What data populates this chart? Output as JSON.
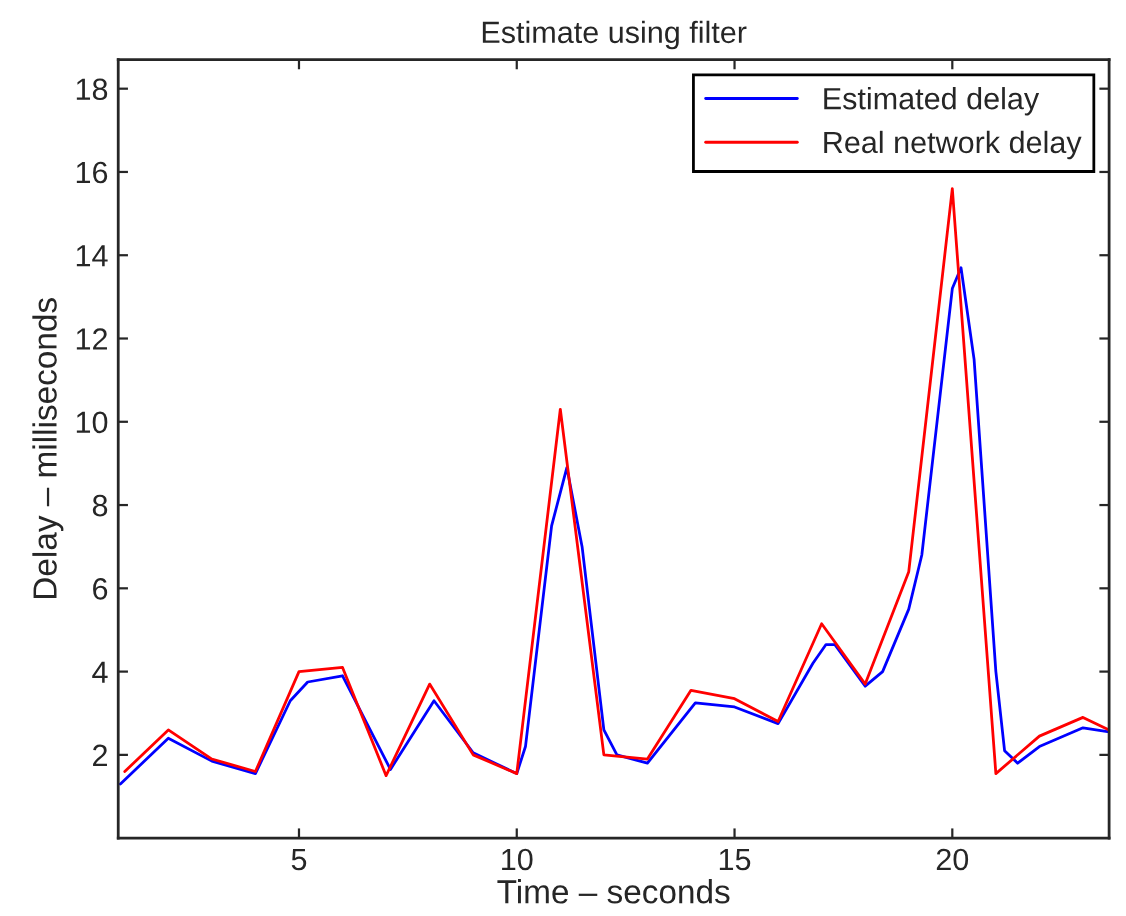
{
  "chart_data": {
    "type": "line",
    "title": "Estimate using filter",
    "xlabel": "Time – seconds",
    "ylabel": "Delay – milliseconds",
    "xlim": [
      0.85,
      23.6
    ],
    "ylim": [
      0,
      18.7
    ],
    "xticks": [
      5,
      10,
      15,
      20
    ],
    "yticks": [
      2,
      4,
      6,
      8,
      10,
      12,
      14,
      16,
      18
    ],
    "grid": false,
    "legend": "top right",
    "series": [
      {
        "name": "Estimated delay",
        "color": "#0000ff",
        "x": [
          0.9,
          2,
          3,
          4,
          4.8,
          5.2,
          6,
          7.1,
          8.1,
          9,
          10,
          10.2,
          10.8,
          11.15,
          11.5,
          12,
          12.3,
          13,
          14.1,
          15,
          16,
          16.8,
          17.1,
          17.3,
          18,
          18.4,
          19,
          19.3,
          20,
          20.2,
          20.5,
          21,
          21.2,
          21.5,
          22,
          23,
          23.6
        ],
        "values": [
          1.3,
          2.4,
          1.85,
          1.55,
          3.3,
          3.75,
          3.9,
          1.65,
          3.3,
          2.05,
          1.55,
          2.2,
          7.5,
          8.9,
          7.0,
          2.6,
          2.0,
          1.8,
          3.25,
          3.15,
          2.75,
          4.2,
          4.65,
          4.65,
          3.65,
          4.0,
          5.5,
          6.8,
          13.2,
          13.7,
          11.5,
          4.0,
          2.1,
          1.8,
          2.2,
          2.65,
          2.55
        ]
      },
      {
        "name": "Real network delay",
        "color": "#ff0000",
        "x": [
          1,
          2,
          3,
          4,
          5,
          6,
          7,
          8,
          9,
          10,
          11,
          12,
          13,
          14,
          15,
          16,
          17,
          18,
          19,
          20,
          21,
          22,
          23,
          23.6
        ],
        "values": [
          1.6,
          2.6,
          1.9,
          1.6,
          4.0,
          4.1,
          1.5,
          3.7,
          2.0,
          1.55,
          10.3,
          2.0,
          1.9,
          3.55,
          3.35,
          2.8,
          5.15,
          3.7,
          6.4,
          15.6,
          1.55,
          2.45,
          2.9,
          2.6
        ]
      }
    ]
  }
}
